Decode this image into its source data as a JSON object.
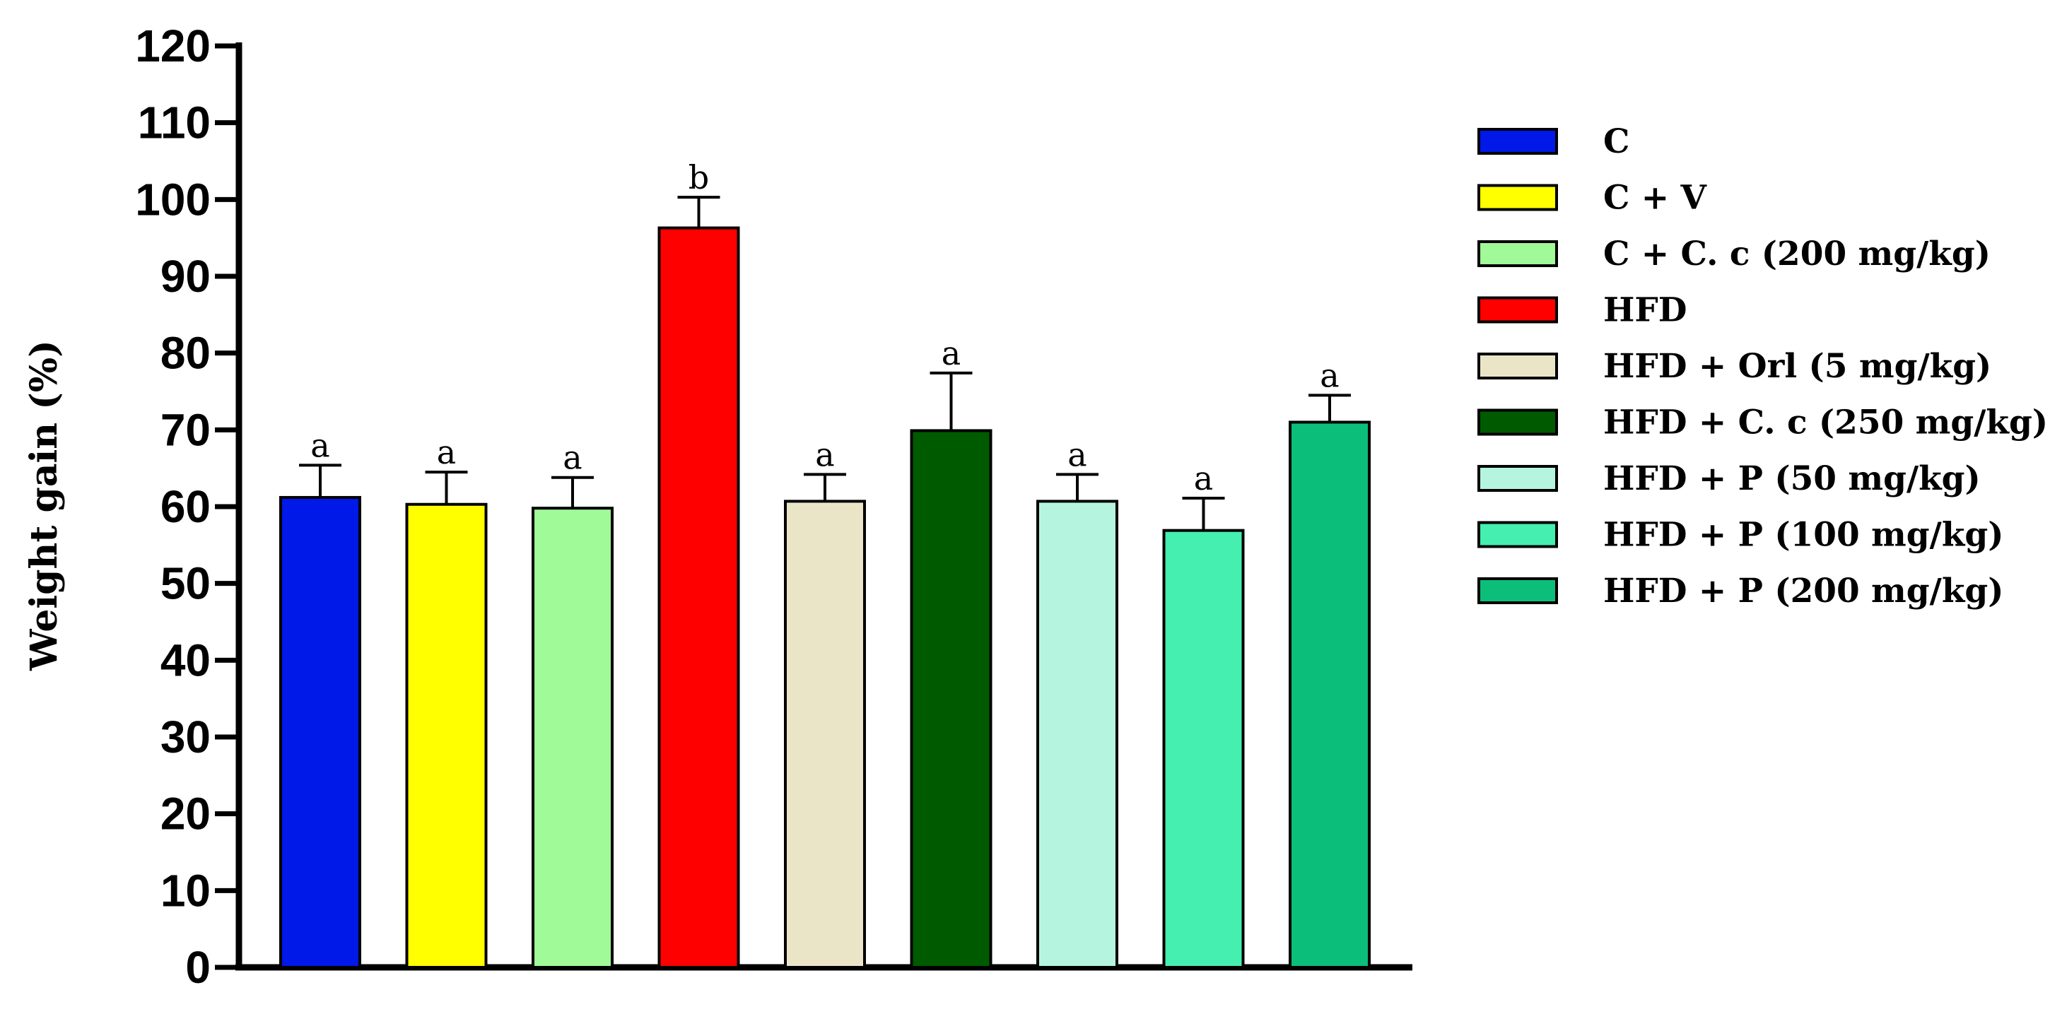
{
  "chart_data": {
    "type": "bar",
    "ylabel": "Weight gain (%)",
    "ylim": [
      0,
      120
    ],
    "yticks": [
      0,
      10,
      20,
      30,
      40,
      50,
      60,
      70,
      80,
      90,
      100,
      110,
      120
    ],
    "grid": false,
    "legend_position": "right",
    "series": [
      {
        "name": "C",
        "value": 61.2,
        "error": 4.2,
        "significance": "a",
        "color": "#0018e8"
      },
      {
        "name": "C + V",
        "value": 60.3,
        "error": 4.2,
        "significance": "a",
        "color": "#ffff00"
      },
      {
        "name": "C + C. c (200 mg/kg)",
        "value": 59.8,
        "error": 4.0,
        "significance": "a",
        "color": "#a0fa98"
      },
      {
        "name": "HFD",
        "value": 96.3,
        "error": 4.0,
        "significance": "b",
        "color": "#ff0000"
      },
      {
        "name": "HFD + Orl (5 mg/kg)",
        "value": 60.7,
        "error": 3.5,
        "significance": "a",
        "color": "#ebe5c8"
      },
      {
        "name": "HFD + C. c (250 mg/kg)",
        "value": 69.9,
        "error": 7.5,
        "significance": "a",
        "color": "#005a00"
      },
      {
        "name": "HFD + P (50 mg/kg)",
        "value": 60.7,
        "error": 3.5,
        "significance": "a",
        "color": "#b5f5df"
      },
      {
        "name": "HFD + P (100 mg/kg)",
        "value": 56.9,
        "error": 4.2,
        "significance": "a",
        "color": "#44efb0"
      },
      {
        "name": "HFD + P (200 mg/kg)",
        "value": 71.0,
        "error": 3.5,
        "significance": "a",
        "color": "#0bbf7a"
      }
    ]
  }
}
